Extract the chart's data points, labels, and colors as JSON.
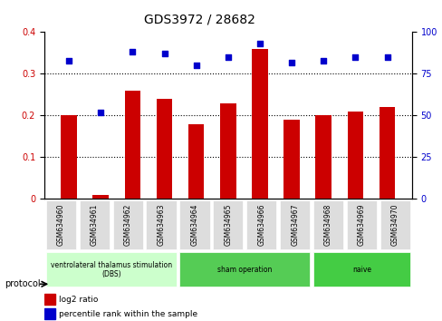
{
  "title": "GDS3972 / 28682",
  "samples": [
    "GSM634960",
    "GSM634961",
    "GSM634962",
    "GSM634963",
    "GSM634964",
    "GSM634965",
    "GSM634966",
    "GSM634967",
    "GSM634968",
    "GSM634969",
    "GSM634970"
  ],
  "log2_ratio": [
    0.2,
    0.01,
    0.26,
    0.24,
    0.18,
    0.23,
    0.36,
    0.19,
    0.2,
    0.21,
    0.22
  ],
  "percentile_rank": [
    83,
    52,
    88,
    87,
    80,
    85,
    93,
    82,
    83,
    85,
    85
  ],
  "bar_color": "#cc0000",
  "dot_color": "#0000cc",
  "ylim_left": [
    0,
    0.4
  ],
  "ylim_right": [
    0,
    100
  ],
  "yticks_left": [
    0,
    0.1,
    0.2,
    0.3,
    0.4
  ],
  "yticks_right": [
    0,
    25,
    50,
    75,
    100
  ],
  "groups": [
    {
      "label": "ventrolateral thalamus stimulation\n(DBS)",
      "samples": [
        "GSM634960",
        "GSM634961",
        "GSM634962",
        "GSM634963"
      ],
      "color": "#ccffcc"
    },
    {
      "label": "sham operation",
      "samples": [
        "GSM634964",
        "GSM634965",
        "GSM634966",
        "GSM634967"
      ],
      "color": "#66dd66"
    },
    {
      "label": "naive",
      "samples": [
        "GSM634968",
        "GSM634969",
        "GSM634970"
      ],
      "color": "#44cc44"
    }
  ],
  "legend_bar_label": "log2 ratio",
  "legend_dot_label": "percentile rank within the sample",
  "xlabel_color": "#cc0000",
  "ylabel_right_color": "#0000cc",
  "grid_color": "#000000",
  "bg_color": "#ffffff",
  "plot_bg_color": "#ffffff",
  "tick_label_bg": "#dddddd"
}
